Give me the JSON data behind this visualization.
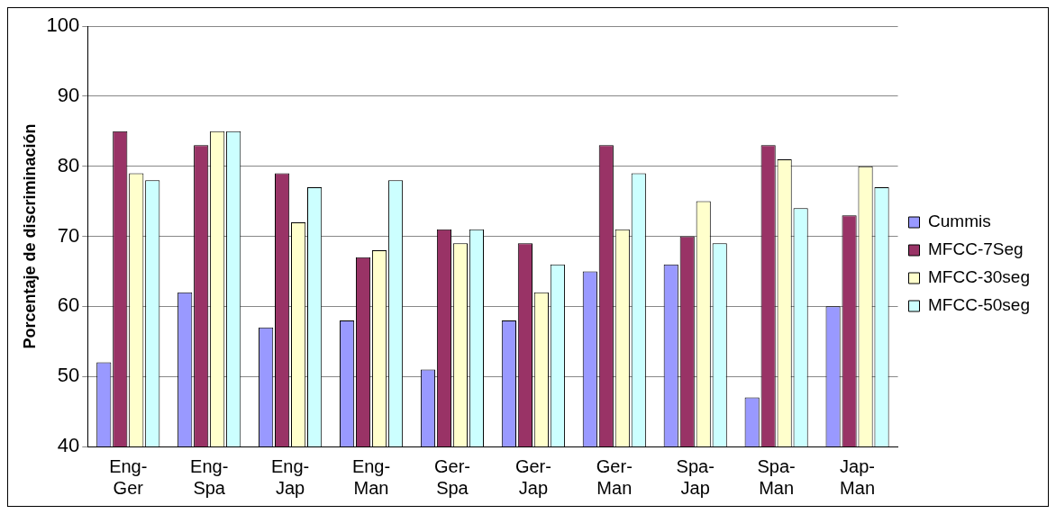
{
  "chart_data": {
    "type": "bar",
    "ylabel": "Porcentaje de discriminación",
    "categories": [
      "Eng-Ger",
      "Eng-Spa",
      "Eng-Jap",
      "Eng-Man",
      "Ger-Spa",
      "Ger-Jap",
      "Ger-Man",
      "Spa-Jap",
      "Spa-Man",
      "Jap-Man"
    ],
    "series": [
      {
        "name": "Cummis",
        "color": "#9999ff",
        "values": [
          52,
          62,
          57,
          58,
          51,
          58,
          65,
          66,
          47,
          60
        ]
      },
      {
        "name": "MFCC-7Seg",
        "color": "#993366",
        "values": [
          85,
          83,
          79,
          67,
          71,
          69,
          83,
          70,
          83,
          73
        ]
      },
      {
        "name": "MFCC-30seg",
        "color": "#ffffcc",
        "values": [
          79,
          85,
          72,
          68,
          69,
          62,
          71,
          75,
          81,
          80
        ]
      },
      {
        "name": "MFCC-50seg",
        "color": "#ccffff",
        "values": [
          78,
          85,
          77,
          78,
          71,
          66,
          79,
          69,
          74,
          77
        ]
      }
    ],
    "ylim": [
      40,
      100
    ],
    "yticks": [
      40,
      50,
      60,
      70,
      80,
      90,
      100
    ],
    "grid": "y",
    "legend": "right"
  }
}
